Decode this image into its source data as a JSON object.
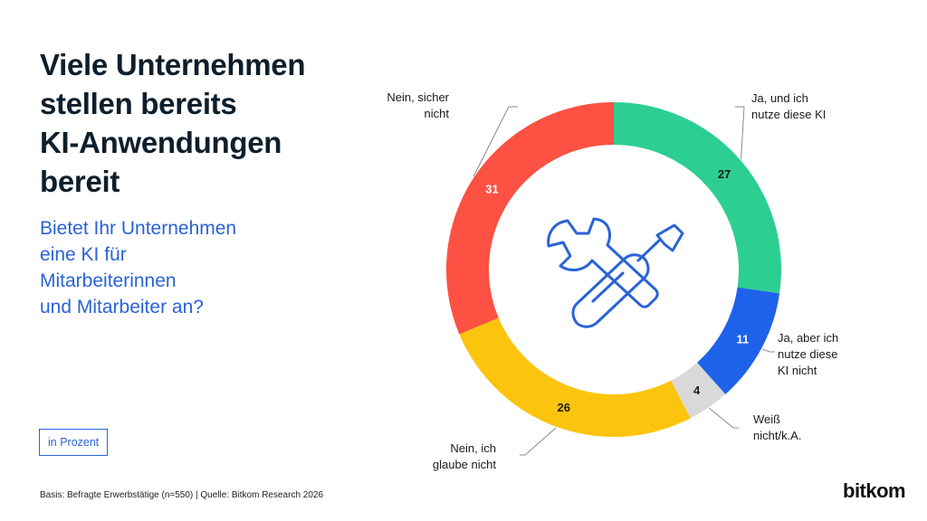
{
  "header": {
    "title_lines": [
      "Viele Unternehmen",
      "stellen bereits",
      "KI-Anwendungen",
      "bereit"
    ],
    "subtitle_lines": [
      "Bietet Ihr Unternehmen",
      "eine KI für",
      "Mitarbeiterinnen",
      "und Mitarbeiter an?"
    ]
  },
  "unit_badge": "in Prozent",
  "footer": {
    "source": "Basis: Befragte Erwerbstätige (n=550) | Quelle: Bitkom Research 2026",
    "logo": "bitkom"
  },
  "center_icon": "wrench-screwdriver-icon",
  "chart_data": {
    "type": "pie",
    "donut": true,
    "unit": "%",
    "slices": [
      {
        "label_lines": [
          "Ja, und ich",
          "nutze diese KI"
        ],
        "value": 27,
        "color": "#2ccf91"
      },
      {
        "label_lines": [
          "Ja, aber ich",
          "nutze diese",
          "KI nicht"
        ],
        "value": 11,
        "color": "#1f62ea"
      },
      {
        "label_lines": [
          "Weiß",
          "nicht/k.A."
        ],
        "value": 4,
        "color": "#d9d9d9"
      },
      {
        "label_lines": [
          "Nein, ich",
          "glaube nicht"
        ],
        "value": 26,
        "color": "#fdc40d"
      },
      {
        "label_lines": [
          "Nein, sicher",
          "nicht"
        ],
        "value": 31,
        "color": "#fc5143"
      }
    ]
  }
}
